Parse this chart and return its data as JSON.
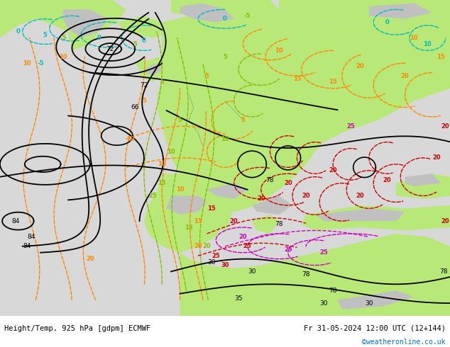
{
  "title_left": "Height/Temp. 925 hPa [gdpm] ECMWF",
  "title_right": "Fr 31-05-2024 12:00 UTC (12+144)",
  "watermark": "©weatheronline.co.uk",
  "figsize": [
    6.34,
    4.9
  ],
  "dpi": 100,
  "sea_color": "#d8d8d8",
  "land_color": "#b8e878",
  "highland_color": "#c0c0c0",
  "bottom_label_color": "#000000",
  "watermark_color": "#0070cc",
  "contour_black_color": "#000000",
  "contour_orange_color": "#ff8800",
  "contour_green_color": "#88bb00",
  "contour_cyan_color": "#00bbbb",
  "contour_red_color": "#cc0000",
  "contour_magenta_color": "#cc00bb"
}
